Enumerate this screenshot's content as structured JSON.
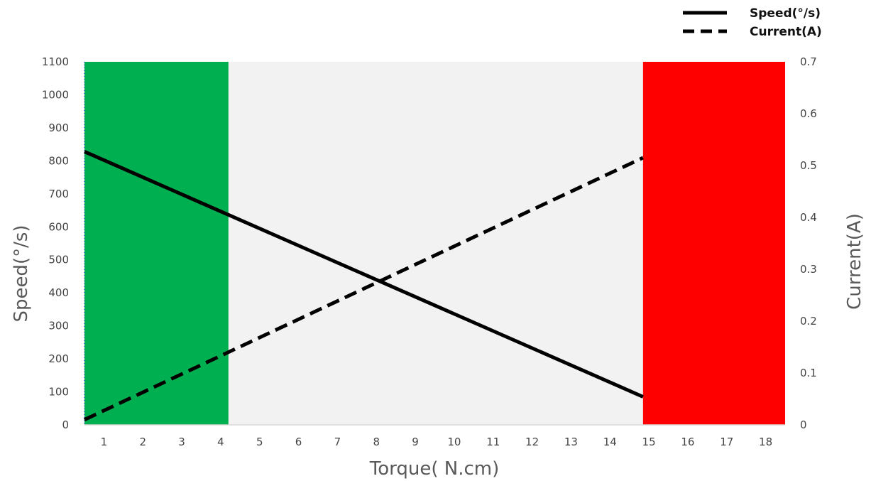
{
  "chart_data": {
    "type": "line",
    "xlabel": "Torque( N.cm)",
    "ylabel": "Speed(°/s)",
    "y2label": "Current(A)",
    "x_ticks": [
      1,
      2,
      3,
      4,
      5,
      6,
      7,
      8,
      9,
      10,
      11,
      12,
      13,
      14,
      15,
      16,
      17,
      18
    ],
    "xlim": [
      0.5,
      18.5
    ],
    "ylim": [
      0,
      1100
    ],
    "y_ticks": [
      0,
      100,
      200,
      300,
      400,
      500,
      600,
      700,
      800,
      900,
      1000,
      1100
    ],
    "y2lim": [
      0,
      0.7
    ],
    "y2_ticks": [
      "0",
      "0.1",
      "0.2",
      "0.3",
      "0.4",
      "0.5",
      "0.6",
      "0.7"
    ],
    "bands": [
      {
        "x_start": 0.5,
        "x_end": 4.2,
        "color": "#00b050"
      },
      {
        "x_start": 4.2,
        "x_end": 14.85,
        "color": "#f2f2f2"
      },
      {
        "x_start": 14.85,
        "x_end": 18.5,
        "color": "#ff0000"
      }
    ],
    "series": [
      {
        "name": "Speed(°/s)",
        "axis": "left",
        "style": "solid",
        "color": "#000000",
        "x": [
          0.5,
          14.85
        ],
        "y": [
          828,
          85
        ]
      },
      {
        "name": "Current(A)",
        "axis": "right",
        "style": "dashed",
        "color": "#000000",
        "x": [
          0.5,
          14.85
        ],
        "y": [
          0.01,
          0.515
        ]
      }
    ],
    "legend": {
      "position": "top-right"
    },
    "grid": false
  }
}
